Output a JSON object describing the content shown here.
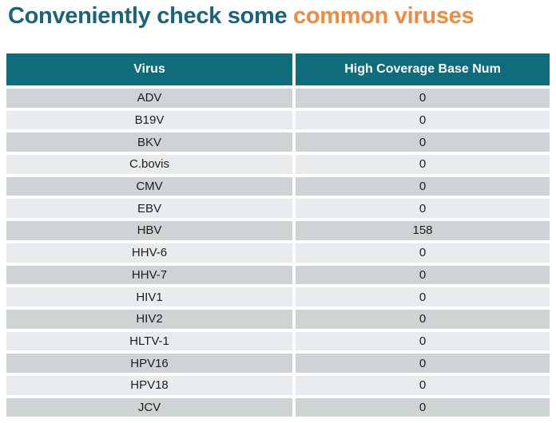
{
  "title": {
    "prefix": "Conveniently check some ",
    "highlight": "common viruses"
  },
  "colors": {
    "page_bg": "#FFFFFF",
    "title_teal": "#19647A",
    "title_orange": "#F08A3C",
    "header_bg": "#0E6C7B",
    "header_text": "#FFFFFF",
    "row_dark": "#CED3D6",
    "row_light": "#E9ECEE",
    "cell_text": "#1E1E1E"
  },
  "table": {
    "columns": [
      "Virus",
      "High Coverage Base Num"
    ],
    "rows": [
      [
        "ADV",
        "0"
      ],
      [
        "B19V",
        "0"
      ],
      [
        "BKV",
        "0"
      ],
      [
        "C.bovis",
        "0"
      ],
      [
        "CMV",
        "0"
      ],
      [
        "EBV",
        "0"
      ],
      [
        "HBV",
        "158"
      ],
      [
        "HHV-6",
        "0"
      ],
      [
        "HHV-7",
        "0"
      ],
      [
        "HIV1",
        "0"
      ],
      [
        "HIV2",
        "0"
      ],
      [
        "HLTV-1",
        "0"
      ],
      [
        "HPV16",
        "0"
      ],
      [
        "HPV18",
        "0"
      ],
      [
        "JCV",
        "0"
      ]
    ]
  }
}
